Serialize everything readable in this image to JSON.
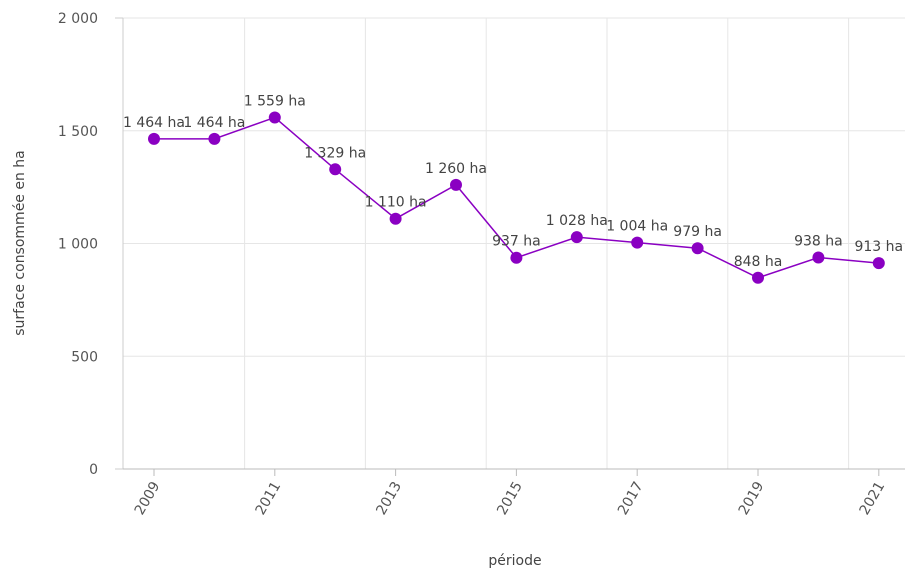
{
  "chart_data": {
    "type": "line",
    "xlabel": "période",
    "ylabel": "surface consommée en ha",
    "ylim": [
      0,
      2000
    ],
    "y_ticks": [
      "0",
      "500",
      "1 000",
      "1 500",
      "2 000"
    ],
    "x_tick_labels": [
      "2009",
      "2011",
      "2013",
      "2015",
      "2017",
      "2019",
      "2021"
    ],
    "grid": "vertical and horizontal",
    "series": [
      {
        "color": "#8a00c2",
        "x": [
          2009,
          2010,
          2011,
          2012,
          2013,
          2014,
          2015,
          2016,
          2017,
          2018,
          2019,
          2020,
          2021
        ],
        "values": [
          1464,
          1464,
          1559,
          1329,
          1110,
          1260,
          937,
          1028,
          1004,
          979,
          848,
          938,
          913
        ],
        "labels": [
          "1 464 ha",
          "1 464 ha",
          "1 559 ha",
          "1 329 ha",
          "1 110 ha",
          "1 260 ha",
          "937 ha",
          "1 028 ha",
          "1 004 ha",
          "979 ha",
          "848 ha",
          "938 ha",
          "913 ha"
        ]
      }
    ]
  }
}
